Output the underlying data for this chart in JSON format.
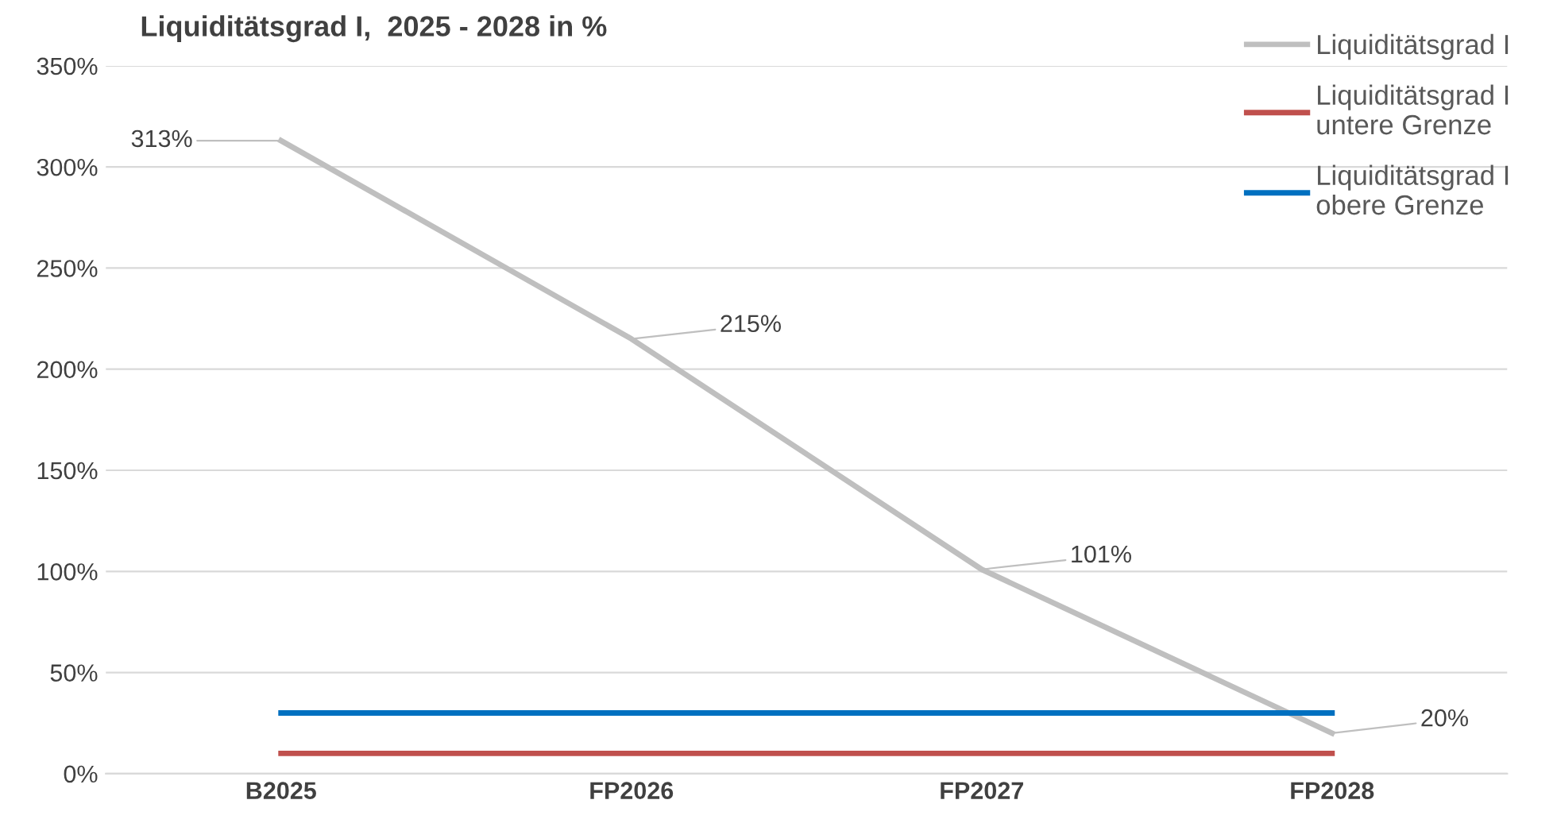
{
  "chart_data": {
    "type": "line",
    "title": "Liquiditätsgrad I,  2025 - 2028 in %",
    "categories": [
      "B2025",
      "FP2026",
      "FP2027",
      "FP2028"
    ],
    "series": [
      {
        "name": "Liquiditätsgrad I",
        "color": "#bfbfbf",
        "values": [
          313,
          215,
          101,
          20
        ],
        "value_labels": [
          "313%",
          "215%",
          "101%",
          "20%"
        ]
      },
      {
        "name": "Liquiditätsgrad I\nuntere Grenze",
        "color": "#c0504d",
        "values": [
          10,
          10,
          10,
          10
        ]
      },
      {
        "name": "Liquiditätsgrad I\nobere Grenze",
        "color": "#0070c0",
        "values": [
          30,
          30,
          30,
          30
        ]
      }
    ],
    "ylim": [
      0,
      350
    ],
    "yticks": [
      {
        "value": 0,
        "label": "0%"
      },
      {
        "value": 50,
        "label": "50%"
      },
      {
        "value": 100,
        "label": "100%"
      },
      {
        "value": 150,
        "label": "150%"
      },
      {
        "value": 200,
        "label": "200%"
      },
      {
        "value": 250,
        "label": "250%"
      },
      {
        "value": 300,
        "label": "300%"
      },
      {
        "value": 350,
        "label": "350%"
      }
    ],
    "grid": "y",
    "legend": "top right",
    "marker": "none",
    "line_style": "solid"
  }
}
